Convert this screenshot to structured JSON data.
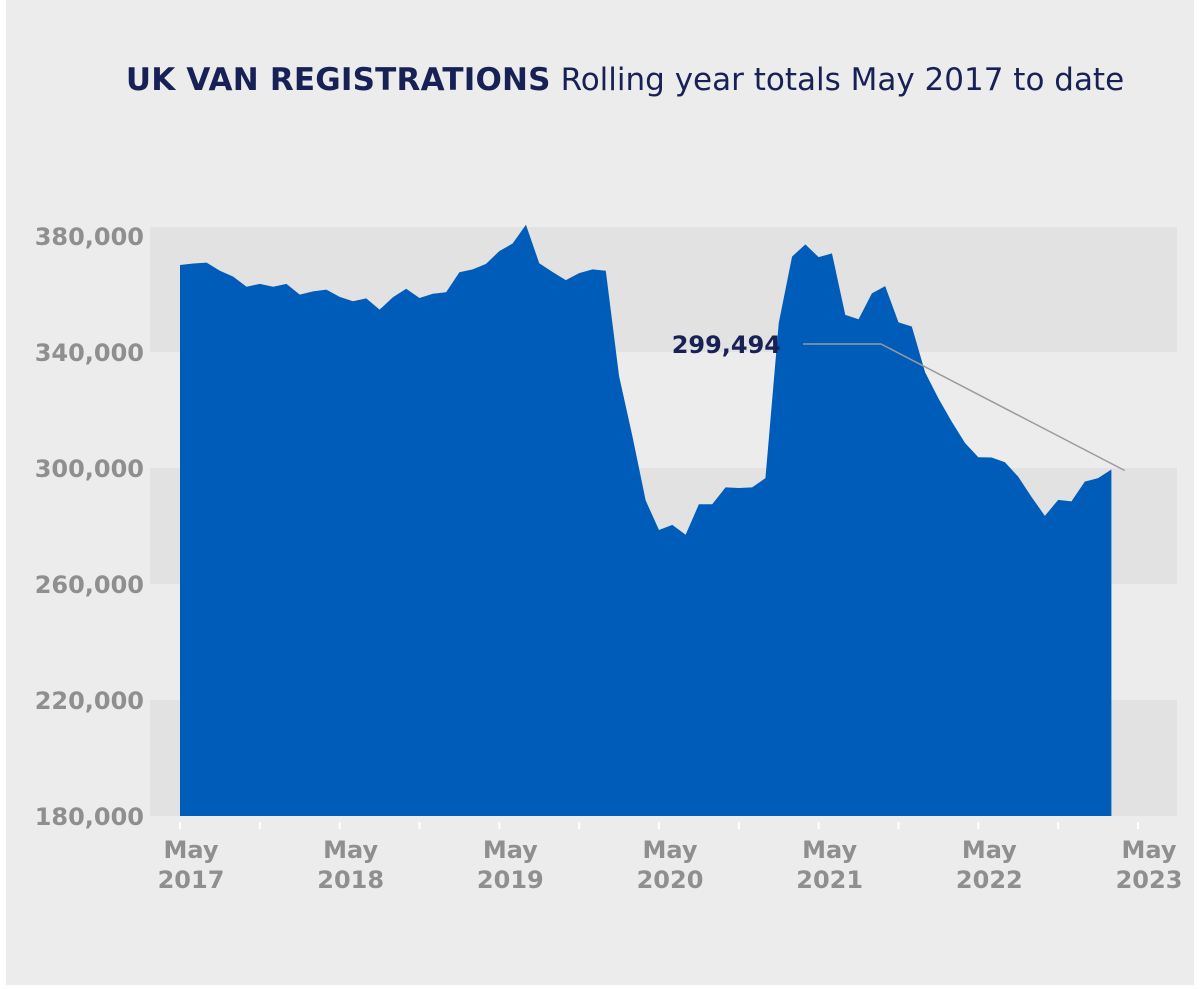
{
  "chart_data": {
    "type": "area",
    "title": "UK VAN REGISTRATIONS",
    "subtitle": "Rolling year totals May 2017 to date",
    "xlabel": "",
    "ylabel": "",
    "ylim": [
      180000,
      385000
    ],
    "yticks": [
      {
        "value": 380000,
        "label": "380,000"
      },
      {
        "value": 340000,
        "label": "340,000"
      },
      {
        "value": 300000,
        "label": "300,000"
      },
      {
        "value": 260000,
        "label": "260,000"
      },
      {
        "value": 220000,
        "label": "220,000"
      },
      {
        "value": 180000,
        "label": "180,000"
      }
    ],
    "xticks": [
      {
        "month": 0,
        "line1": "May",
        "line2": "2017"
      },
      {
        "month": 12,
        "line1": "May",
        "line2": "2018"
      },
      {
        "month": 24,
        "line1": "May",
        "line2": "2019"
      },
      {
        "month": 36,
        "line1": "May",
        "line2": "2020"
      },
      {
        "month": 48,
        "line1": "May",
        "line2": "2021"
      },
      {
        "month": 60,
        "line1": "May",
        "line2": "2022"
      },
      {
        "month": 72,
        "line1": "May",
        "line2": "2023"
      }
    ],
    "x_unit": "months since May 2017",
    "values": [
      370000,
      370500,
      370800,
      368000,
      366000,
      362500,
      363500,
      362500,
      363500,
      359800,
      360900,
      361500,
      359000,
      357500,
      358500,
      354600,
      358900,
      361800,
      358600,
      360100,
      360600,
      367500,
      368500,
      370400,
      374800,
      377400,
      383900,
      370600,
      367600,
      364800,
      367200,
      368500,
      368000,
      331700,
      311000,
      288800,
      278600,
      280400,
      277000,
      287500,
      287500,
      293300,
      293100,
      293300,
      296500,
      350000,
      372900,
      377100,
      372700,
      374000,
      352800,
      351300,
      360200,
      362700,
      350200,
      348800,
      333000,
      324000,
      316000,
      308600,
      303700,
      303600,
      302000,
      297000,
      290000,
      283500,
      289000,
      288500,
      295300,
      296500,
      299494
    ],
    "grid": "alternating horizontal bands",
    "colors": {
      "area": "#005cb9",
      "band": "#e2e2e2",
      "background": "#ececec",
      "title": "#172155",
      "ticks": "#8f8f8f",
      "callout_line": "#9a9a9a"
    },
    "annotation": {
      "label": "299,494",
      "month": 70,
      "value": 299494
    }
  }
}
